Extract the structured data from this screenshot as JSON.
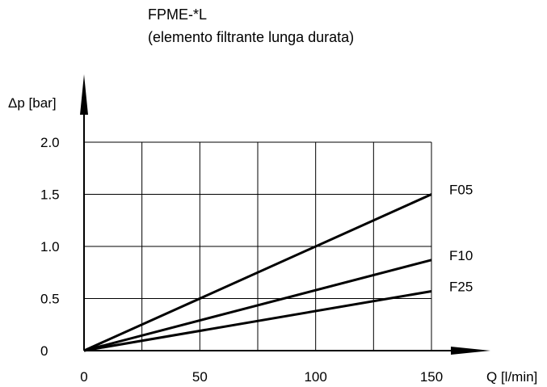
{
  "chart_data": {
    "type": "line",
    "title": "FPME-*L",
    "subtitle": "(elemento filtrante lunga durata)",
    "xlabel": "Q [l/min]",
    "ylabel": "Δp [bar]",
    "xlim": [
      0,
      150
    ],
    "ylim": [
      0,
      2.0
    ],
    "x_ticks": [
      0,
      50,
      100,
      150
    ],
    "x_tick_labels": [
      "0",
      "50",
      "100",
      "150"
    ],
    "y_ticks": [
      0,
      0.5,
      1.0,
      1.5,
      2.0
    ],
    "y_tick_labels": [
      "0",
      "0.5",
      "1.0",
      "1.5",
      "2.0"
    ],
    "x_grid_step": 25,
    "y_grid_step": 0.5,
    "grid": true,
    "series": [
      {
        "name": "F05",
        "x": [
          0,
          150
        ],
        "y": [
          0,
          1.5
        ]
      },
      {
        "name": "F10",
        "x": [
          0,
          150
        ],
        "y": [
          0,
          0.87
        ]
      },
      {
        "name": "F25",
        "x": [
          0,
          150
        ],
        "y": [
          0,
          0.57
        ]
      }
    ],
    "colors": {
      "line": "#000000",
      "grid": "#000000"
    }
  }
}
